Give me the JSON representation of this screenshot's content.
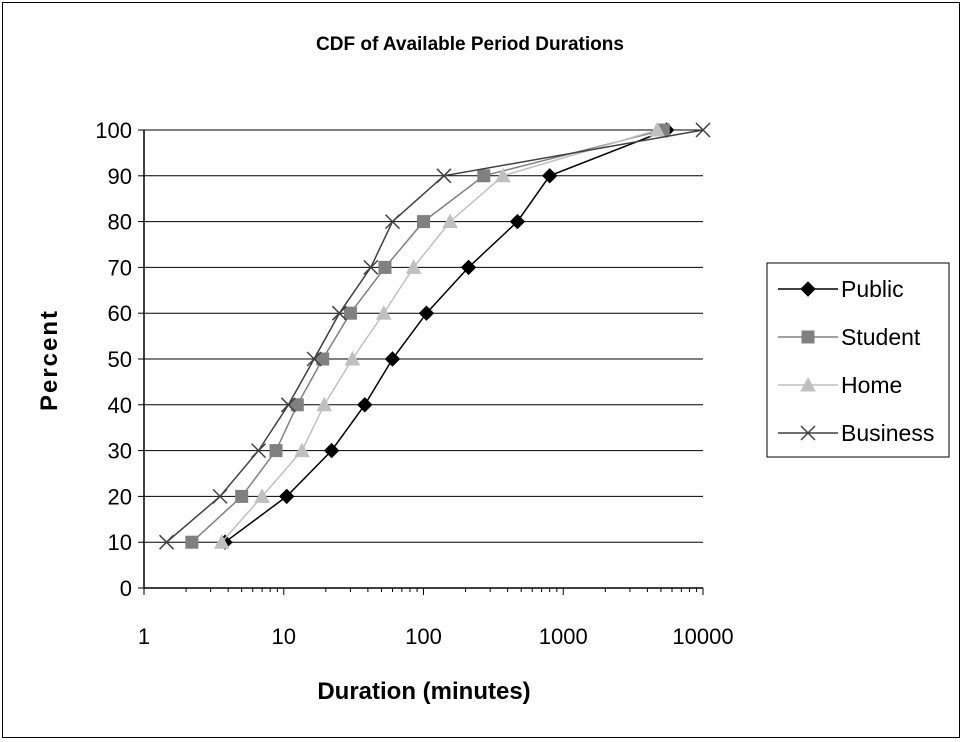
{
  "chart_data": {
    "type": "line",
    "title": "CDF of Available Period Durations",
    "xlabel": "Duration (minutes)",
    "ylabel": "Percent",
    "x_scale": "log",
    "xlim": [
      1,
      10000
    ],
    "ylim": [
      0,
      100
    ],
    "x_ticks": [
      "1",
      "10",
      "100",
      "1000",
      "10000"
    ],
    "y_ticks": [
      "0",
      "10",
      "20",
      "30",
      "40",
      "50",
      "60",
      "70",
      "80",
      "90",
      "100"
    ],
    "grid": "horizontal",
    "legend_position": "right",
    "series": [
      {
        "name": "Public",
        "color": "#000000",
        "marker": "diamond",
        "points": [
          {
            "x": 3.8,
            "y": 10
          },
          {
            "x": 10.5,
            "y": 20
          },
          {
            "x": 22,
            "y": 30
          },
          {
            "x": 38,
            "y": 40
          },
          {
            "x": 60,
            "y": 50
          },
          {
            "x": 105,
            "y": 60
          },
          {
            "x": 210,
            "y": 70
          },
          {
            "x": 470,
            "y": 80
          },
          {
            "x": 800,
            "y": 90
          },
          {
            "x": 5500,
            "y": 100
          }
        ]
      },
      {
        "name": "Student",
        "color": "#808080",
        "marker": "square",
        "points": [
          {
            "x": 2.2,
            "y": 10
          },
          {
            "x": 5,
            "y": 20
          },
          {
            "x": 8.8,
            "y": 30
          },
          {
            "x": 12.5,
            "y": 40
          },
          {
            "x": 19,
            "y": 50
          },
          {
            "x": 30,
            "y": 60
          },
          {
            "x": 53,
            "y": 70
          },
          {
            "x": 100,
            "y": 80
          },
          {
            "x": 270,
            "y": 90
          },
          {
            "x": 5200,
            "y": 100
          }
        ]
      },
      {
        "name": "Home",
        "color": "#c0c0c0",
        "marker": "triangle",
        "points": [
          {
            "x": 3.6,
            "y": 10
          },
          {
            "x": 7,
            "y": 20
          },
          {
            "x": 13.5,
            "y": 30
          },
          {
            "x": 19.5,
            "y": 40
          },
          {
            "x": 31,
            "y": 50
          },
          {
            "x": 52,
            "y": 60
          },
          {
            "x": 85,
            "y": 70
          },
          {
            "x": 155,
            "y": 80
          },
          {
            "x": 370,
            "y": 90
          },
          {
            "x": 4700,
            "y": 100
          }
        ]
      },
      {
        "name": "Business",
        "color": "#404040",
        "marker": "x",
        "points": [
          {
            "x": 1.45,
            "y": 10
          },
          {
            "x": 3.5,
            "y": 20
          },
          {
            "x": 6.6,
            "y": 30
          },
          {
            "x": 10.8,
            "y": 40
          },
          {
            "x": 16.5,
            "y": 50
          },
          {
            "x": 25,
            "y": 60
          },
          {
            "x": 42,
            "y": 70
          },
          {
            "x": 60,
            "y": 80
          },
          {
            "x": 140,
            "y": 90
          },
          {
            "x": 10000,
            "y": 100
          }
        ]
      }
    ]
  }
}
